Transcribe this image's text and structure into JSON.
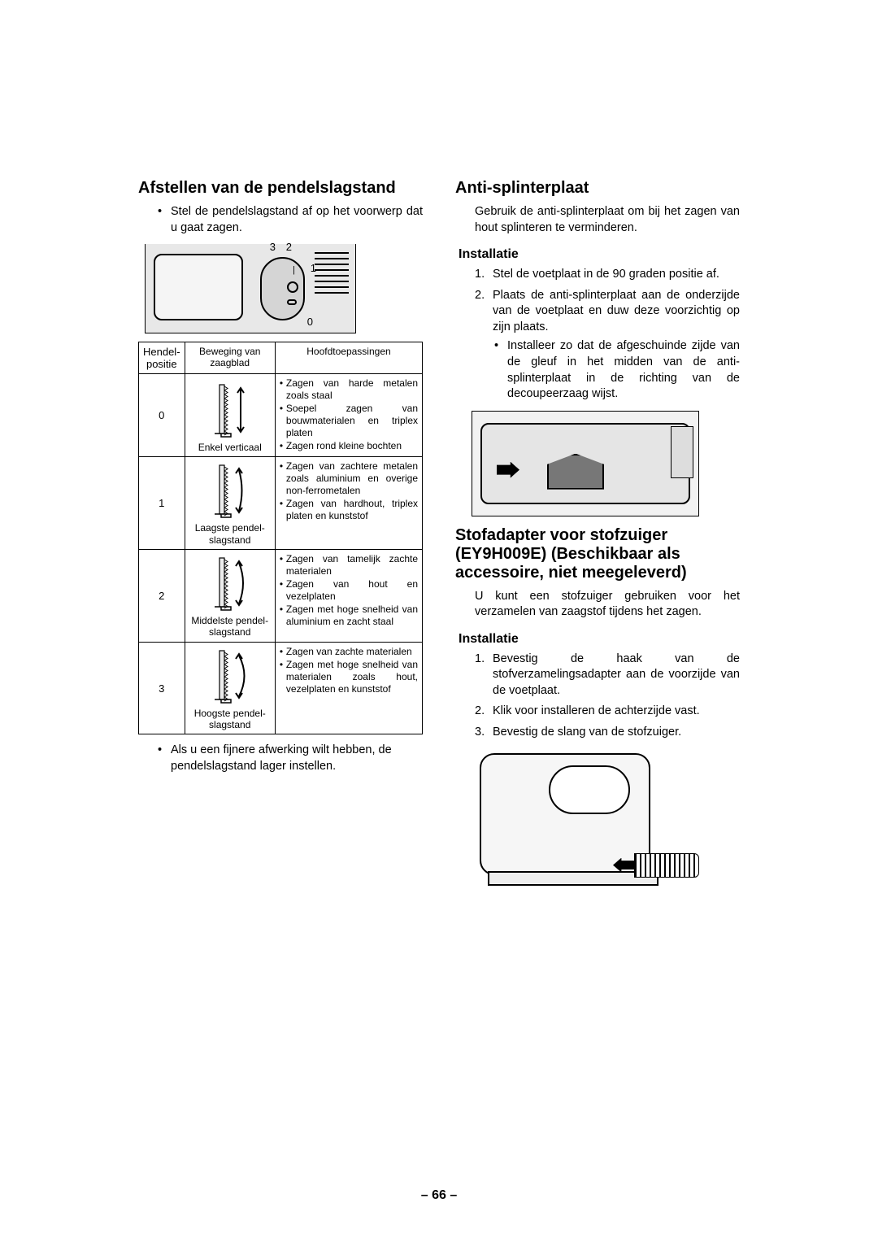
{
  "left": {
    "h2": "Afstellen van de pendelslagstand",
    "intro": "Stel de pendelslagstand af op het voorwerp dat u gaat zagen.",
    "dial_labels": {
      "n3": "3",
      "n2": "2",
      "n1": "1",
      "n0": "0"
    },
    "table": {
      "headers": {
        "pos": "Hendel-positie",
        "mov": "Beweging van zaagblad",
        "app": "Hoofdtoepassingen"
      },
      "rows": [
        {
          "pos": "0",
          "mov": "Enkel verticaal",
          "apps": [
            "Zagen van harde metalen zoals staal",
            "Soepel zagen van bouwmaterialen en triplex platen",
            "Zagen rond kleine bochten"
          ]
        },
        {
          "pos": "1",
          "mov": "Laagste pendel-slagstand",
          "apps": [
            "Zagen van zachtere metalen zoals aluminium en overige non-ferrometalen",
            "Zagen van hardhout, triplex platen en kunststof"
          ]
        },
        {
          "pos": "2",
          "mov": "Middelste pendel-slagstand",
          "apps": [
            "Zagen van tamelijk zachte materialen",
            "Zagen van hout en vezelplaten",
            "Zagen met hoge snelheid van aluminium en zacht staal"
          ]
        },
        {
          "pos": "3",
          "mov": "Hoogste pendel-slagstand",
          "apps": [
            "Zagen van zachte materialen",
            "Zagen met hoge snelheid van materialen zoals hout, vezelplaten en kunststof"
          ]
        }
      ]
    },
    "note": "Als u een fijnere afwerking wilt hebben, de pendelslagstand lager instellen."
  },
  "right": {
    "h2a": "Anti-splinterplaat",
    "p1": "Gebruik de anti-splinterplaat om bij het zagen van hout splinteren te verminderen.",
    "h3a": "Installatie",
    "ol1": [
      "Stel de voetplaat in de 90 graden positie af.",
      "Plaats de anti-splinterplaat aan de onderzijde van de voetplaat en duw deze voorzichtig op zijn plaats."
    ],
    "nested1": "Installeer zo dat de afgeschuinde zijde van de gleuf in het midden van de anti-splinterplaat in de richting van de decoupeerzaag wijst.",
    "h2b": "Stofadapter voor stofzuiger (EY9H009E) (Beschikbaar als accessoire, niet meegeleverd)",
    "p2": "U kunt een stofzuiger gebruiken voor het verzamelen van zaagstof tijdens het zagen.",
    "h3b": "Installatie",
    "ol2": [
      "Bevestig de haak van de stofverzamelingsadapter aan de voorzijde van de voetplaat.",
      "Klik voor installeren de achterzijde vast.",
      "Bevestig de slang van de stofzuiger."
    ]
  },
  "page_number": "– 66 –"
}
